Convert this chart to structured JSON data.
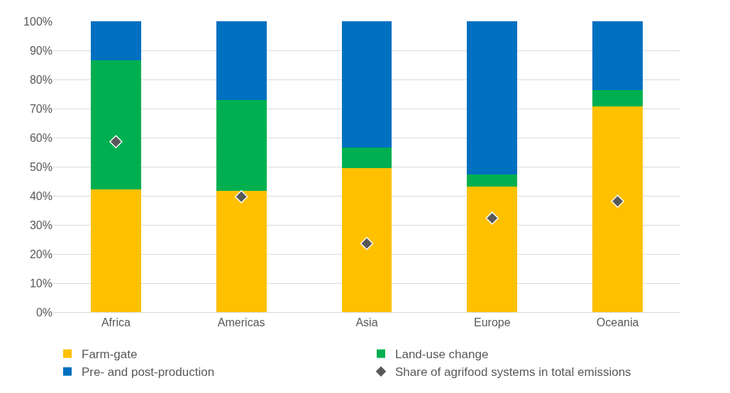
{
  "chart_data": {
    "type": "bar",
    "stacked": true,
    "categories": [
      "Africa",
      "Americas",
      "Asia",
      "Europe",
      "Oceania"
    ],
    "series": [
      {
        "name": "Farm-gate",
        "color": "#ffc000",
        "values": [
          42.3,
          41.8,
          49.4,
          43.2,
          70.8
        ]
      },
      {
        "name": "Land-use change",
        "color": "#00b050",
        "values": [
          44.2,
          31.2,
          7.3,
          4.1,
          5.6
        ]
      },
      {
        "name": "Pre- and post-production",
        "color": "#0070c0",
        "values": [
          13.5,
          27.0,
          43.3,
          52.7,
          23.6
        ]
      },
      {
        "name": "Share of agrifood systems in total emissions",
        "type": "scatter",
        "marker": "diamond",
        "color": "#595959",
        "x": [
          "Africa",
          "Americas",
          "Asia",
          "Europe",
          "Oceania"
        ],
        "values": [
          58.6,
          39.7,
          23.6,
          32.3,
          38.1
        ]
      }
    ],
    "ylim": [
      0,
      100
    ],
    "yticks": [
      {
        "value": 0,
        "label": "0%"
      },
      {
        "value": 10,
        "label": "10%"
      },
      {
        "value": 20,
        "label": "20%"
      },
      {
        "value": 30,
        "label": "30%"
      },
      {
        "value": 40,
        "label": "40%"
      },
      {
        "value": 50,
        "label": "50%"
      },
      {
        "value": 60,
        "label": "60%"
      },
      {
        "value": 70,
        "label": "70%"
      },
      {
        "value": 80,
        "label": "80%"
      },
      {
        "value": 90,
        "label": "90%"
      },
      {
        "value": 100,
        "label": "100%"
      }
    ],
    "grid": "y",
    "legend": "bottom"
  }
}
